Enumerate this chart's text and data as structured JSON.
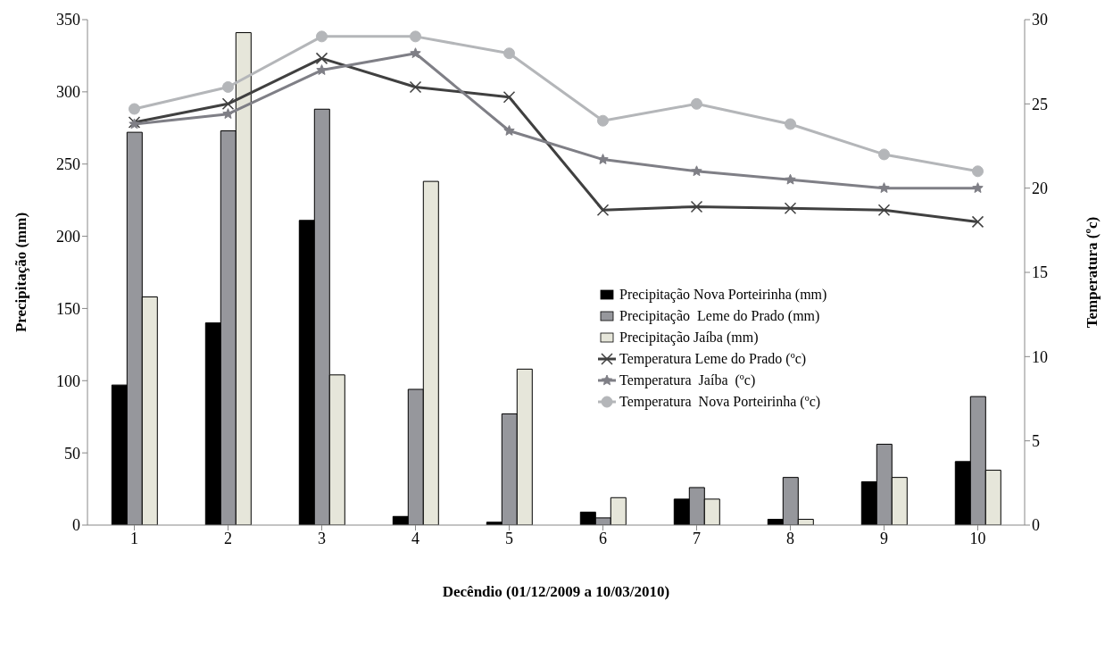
{
  "chart_data": {
    "type": "bar",
    "xlabel": "Decêndio (01/12/2009 a 10/03/2010)",
    "ylabel": "Precipitação (mm)",
    "y2label": "Temperatura (ºc)",
    "categories": [
      "1",
      "2",
      "3",
      "4",
      "5",
      "6",
      "7",
      "8",
      "9",
      "10"
    ],
    "series": [
      {
        "name": "Precipitação Nova Porteirinha (mm)",
        "color": "#000000",
        "values": [
          97,
          140,
          211,
          6,
          2,
          9,
          18,
          4,
          30,
          44
        ]
      },
      {
        "name": "Precipitação  Leme do Prado (mm)",
        "color": "#96979c",
        "values": [
          272,
          273,
          288,
          94,
          77,
          5,
          26,
          33,
          56,
          89
        ]
      },
      {
        "name": "Precipitação Jaíba (mm)",
        "color": "#e6e6da",
        "values": [
          158,
          341,
          104,
          238,
          108,
          19,
          18,
          4,
          33,
          38
        ]
      },
      {
        "name": "Temperatura Leme do Prado (ºc)",
        "type": "line",
        "axis": "y2",
        "marker": "cross",
        "color": "#404040",
        "values": [
          23.9,
          25,
          27.7,
          26,
          25.4,
          18.7,
          18.9,
          18.8,
          18.7,
          18
        ]
      },
      {
        "name": "Temperatura  Jaíba  (ºc)",
        "type": "line",
        "axis": "y2",
        "marker": "star",
        "color": "#7f7f86",
        "values": [
          23.8,
          24.4,
          27,
          28,
          23.4,
          21.7,
          21,
          20.5,
          20,
          20
        ]
      },
      {
        "name": "Temperatura  Nova Porteirinha (ºc)",
        "type": "line",
        "axis": "y2",
        "marker": "circle",
        "color": "#b4b6b9",
        "values": [
          24.7,
          26,
          29,
          29,
          28,
          24,
          25,
          23.8,
          22,
          21
        ]
      }
    ],
    "ylim": [
      0,
      350
    ],
    "yticks": [
      0,
      50,
      100,
      150,
      200,
      250,
      300,
      350
    ],
    "y2lim": [
      0,
      30
    ],
    "y2ticks": [
      0,
      5,
      10,
      15,
      20,
      25,
      30
    ],
    "grid": false,
    "legend": "right"
  }
}
